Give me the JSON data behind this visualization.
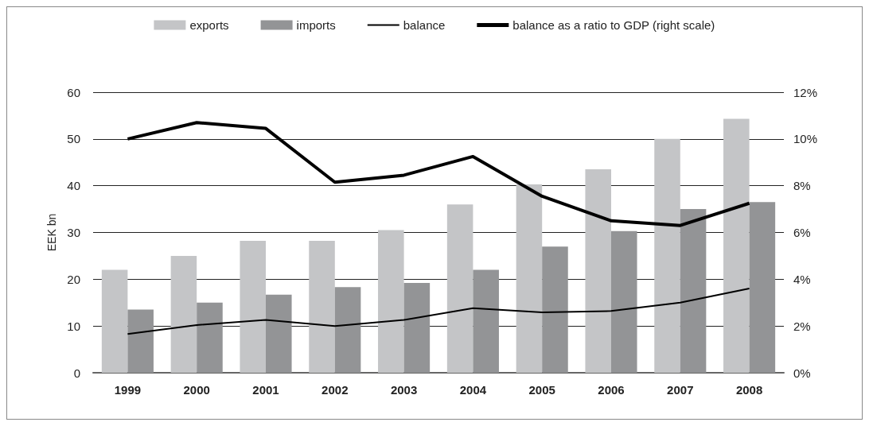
{
  "chart_data": {
    "type": "bar",
    "ylabel": "EEK bn",
    "categories": [
      "1999",
      "2000",
      "2001",
      "2002",
      "2003",
      "2004",
      "2005",
      "2006",
      "2007",
      "2008"
    ],
    "series": [
      {
        "name": "exports",
        "color": "#c4c5c7",
        "values": [
          22,
          25,
          28.2,
          28.2,
          30.5,
          36,
          40.3,
          43.5,
          50,
          54.3
        ]
      },
      {
        "name": "imports",
        "color": "#939496",
        "values": [
          13.5,
          15,
          16.7,
          18.3,
          19.2,
          22,
          27,
          30.3,
          35,
          36.5
        ]
      },
      {
        "name": "balance",
        "type": "line",
        "color": "#000000",
        "values": [
          8.3,
          10.2,
          11.3,
          10,
          11.3,
          13.8,
          12.9,
          13.2,
          15,
          18
        ]
      },
      {
        "name": "balance as a ratio to GDP (right scale)",
        "type": "line",
        "axis": "y2",
        "color": "#000000",
        "values": [
          10,
          10.7,
          10.45,
          8.15,
          8.45,
          9.25,
          7.55,
          6.5,
          6.3,
          7.25
        ]
      }
    ],
    "ylim": [
      0,
      60
    ],
    "yticks": [
      0,
      10,
      20,
      30,
      40,
      50,
      60
    ],
    "y2lim": [
      0,
      12
    ],
    "y2ticks": [
      {
        "value": 0,
        "label": "0%"
      },
      {
        "value": 2,
        "label": "2%"
      },
      {
        "value": 4,
        "label": "4%"
      },
      {
        "value": 6,
        "label": "6%"
      },
      {
        "value": 8,
        "label": "8%"
      },
      {
        "value": 10,
        "label": "10%"
      },
      {
        "value": 12,
        "label": "12%"
      }
    ],
    "grid": "y",
    "legend": "top",
    "marker": "none",
    "line_style": "solid"
  }
}
